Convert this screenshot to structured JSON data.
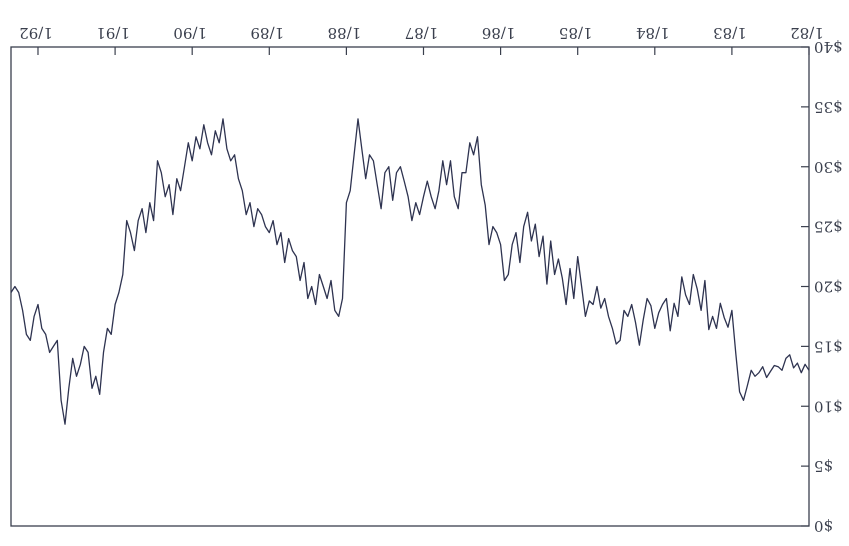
{
  "chart_data": {
    "type": "line",
    "orientation": "rotated-180",
    "title": "",
    "xlabel": "",
    "ylabel": "",
    "grid": false,
    "legend": "none",
    "x_tick_labels": [
      "1/82",
      "1/83",
      "1/84",
      "1/85",
      "1/86",
      "1/87",
      "1/88",
      "1/89",
      "1/90",
      "1/91",
      "1/92"
    ],
    "x_tick_values": [
      1982,
      1983,
      1984,
      1985,
      1986,
      1987,
      1988,
      1989,
      1990,
      1991,
      1992
    ],
    "xlim": [
      1982,
      1992.35
    ],
    "y_tick_labels": [
      "$0",
      "$5",
      "$10",
      "$15",
      "$20",
      "$25",
      "$30",
      "$35",
      "$40"
    ],
    "y_tick_values": [
      0,
      5,
      10,
      15,
      20,
      25,
      30,
      35,
      40
    ],
    "ylim": [
      0,
      40
    ],
    "colors": {
      "line": "#2e3350",
      "axis": "#3a3f4d"
    },
    "series": [
      {
        "x": [
          1982.0,
          1982.05,
          1982.1,
          1982.15,
          1982.2,
          1982.25,
          1982.3,
          1982.35,
          1982.4,
          1982.45,
          1982.5,
          1982.55,
          1982.6,
          1982.65,
          1982.7,
          1982.75,
          1982.8,
          1982.85,
          1982.9,
          1982.95,
          1983.0,
          1983.05,
          1983.1,
          1983.15,
          1983.2,
          1983.25,
          1983.3,
          1983.35,
          1983.4,
          1983.45,
          1983.5,
          1983.55,
          1983.6,
          1983.65,
          1983.7,
          1983.75,
          1983.8,
          1983.85,
          1983.9,
          1983.95,
          1984.0,
          1984.05,
          1984.1,
          1984.15,
          1984.2,
          1984.25,
          1984.3,
          1984.35,
          1984.4,
          1984.45,
          1984.5,
          1984.55,
          1984.6,
          1984.65,
          1984.7,
          1984.75,
          1984.8,
          1984.85,
          1984.9,
          1984.95,
          1985.0,
          1985.05,
          1985.1,
          1985.15,
          1985.2,
          1985.25,
          1985.3,
          1985.35,
          1985.4,
          1985.45,
          1985.5,
          1985.55,
          1985.6,
          1985.65,
          1985.7,
          1985.75,
          1985.8,
          1985.85,
          1985.9,
          1985.95,
          1986.0,
          1986.05,
          1986.1,
          1986.15,
          1986.2,
          1986.25,
          1986.3,
          1986.35,
          1986.4,
          1986.45,
          1986.5,
          1986.55,
          1986.6,
          1986.65,
          1986.7,
          1986.75,
          1986.8,
          1986.85,
          1986.9,
          1986.95,
          1987.0,
          1987.05,
          1987.1,
          1987.15,
          1987.2,
          1987.25,
          1987.3,
          1987.35,
          1987.4,
          1987.45,
          1987.5,
          1987.55,
          1987.6,
          1987.65,
          1987.7,
          1987.75,
          1987.8,
          1987.85,
          1987.9,
          1987.95,
          1988.0,
          1988.05,
          1988.1,
          1988.15,
          1988.2,
          1988.25,
          1988.3,
          1988.35,
          1988.4,
          1988.45,
          1988.5,
          1988.55,
          1988.6,
          1988.65,
          1988.7,
          1988.75,
          1988.8,
          1988.85,
          1988.9,
          1988.95,
          1989.0,
          1989.05,
          1989.1,
          1989.15,
          1989.2,
          1989.25,
          1989.3,
          1989.35,
          1989.4,
          1989.45,
          1989.5,
          1989.55,
          1989.6,
          1989.65,
          1989.7,
          1989.75,
          1989.8,
          1989.85,
          1989.9,
          1989.95,
          1990.0,
          1990.05,
          1990.1,
          1990.15,
          1990.2,
          1990.25,
          1990.3,
          1990.35,
          1990.4,
          1990.45,
          1990.5,
          1990.55,
          1990.6,
          1990.65,
          1990.7,
          1990.75,
          1990.8,
          1990.85,
          1990.9,
          1990.95,
          1991.0,
          1991.05,
          1991.1,
          1991.15,
          1991.2,
          1991.25,
          1991.3,
          1991.35,
          1991.4,
          1991.45,
          1991.5,
          1991.55,
          1991.6,
          1991.65,
          1991.7,
          1991.75,
          1991.8,
          1991.85,
          1991.9,
          1991.95,
          1992.0,
          1992.05,
          1992.1,
          1992.15,
          1992.2,
          1992.25,
          1992.3,
          1992.35
        ],
        "values": [
          13.0,
          13.5,
          12.8,
          13.6,
          13.2,
          14.3,
          14.0,
          13.0,
          13.3,
          13.4,
          12.9,
          12.4,
          13.3,
          12.8,
          12.5,
          13.0,
          11.7,
          10.5,
          11.2,
          14.4,
          18.0,
          16.6,
          17.4,
          18.6,
          16.5,
          17.5,
          16.4,
          20.5,
          18.0,
          19.8,
          21.0,
          18.5,
          19.3,
          20.8,
          17.5,
          18.6,
          16.3,
          19.0,
          18.5,
          17.8,
          16.5,
          18.4,
          19.0,
          17.2,
          15.1,
          17.0,
          18.5,
          17.5,
          18.0,
          15.5,
          15.2,
          16.5,
          17.5,
          19.0,
          18.2,
          20.0,
          18.5,
          18.8,
          17.5,
          20.0,
          22.5,
          19.0,
          21.5,
          18.5,
          20.7,
          22.3,
          21.0,
          23.8,
          20.2,
          24.2,
          22.5,
          25.2,
          23.8,
          26.2,
          25.0,
          22.0,
          24.5,
          23.5,
          21.0,
          20.5,
          23.5,
          24.5,
          25.0,
          23.5,
          26.8,
          28.5,
          32.5,
          31.0,
          32.0,
          29.5,
          29.5,
          26.5,
          27.5,
          30.5,
          28.5,
          30.5,
          28.0,
          26.5,
          27.5,
          28.8,
          27.5,
          26.0,
          27.0,
          25.5,
          27.5,
          28.8,
          30.0,
          29.5,
          27.2,
          30.0,
          29.5,
          26.5,
          28.5,
          30.5,
          31.0,
          29.0,
          31.5,
          34.0,
          31.0,
          28.0,
          27.0,
          19.0,
          17.5,
          18.0,
          20.5,
          19.0,
          20.0,
          21.0,
          18.5,
          20.0,
          19.0,
          22.0,
          20.5,
          22.5,
          23.0,
          24.0,
          22.0,
          24.5,
          23.5,
          25.5,
          24.5,
          25.0,
          26.0,
          26.5,
          25.0,
          27.0,
          26.0,
          28.0,
          29.0,
          31.0,
          30.5,
          31.5,
          34.0,
          32.0,
          33.0,
          31.0,
          32.0,
          33.5,
          31.5,
          32.5,
          30.5,
          32.0,
          30.0,
          28.0,
          29.0,
          26.0,
          28.5,
          27.5,
          29.5,
          30.5,
          25.5,
          27.0,
          24.5,
          26.5,
          25.5,
          23.0,
          24.5,
          25.5,
          21.0,
          19.5,
          18.5,
          16.0,
          16.5,
          14.5,
          11.0,
          12.5,
          11.5,
          14.5,
          15.0,
          13.5,
          12.5,
          14.0,
          11.5,
          8.5,
          10.5,
          15.5,
          15.0,
          14.5,
          16.0,
          16.5,
          18.5,
          17.5,
          15.5,
          16.0,
          18.0,
          19.5,
          20.0,
          19.5
        ]
      }
    ]
  }
}
